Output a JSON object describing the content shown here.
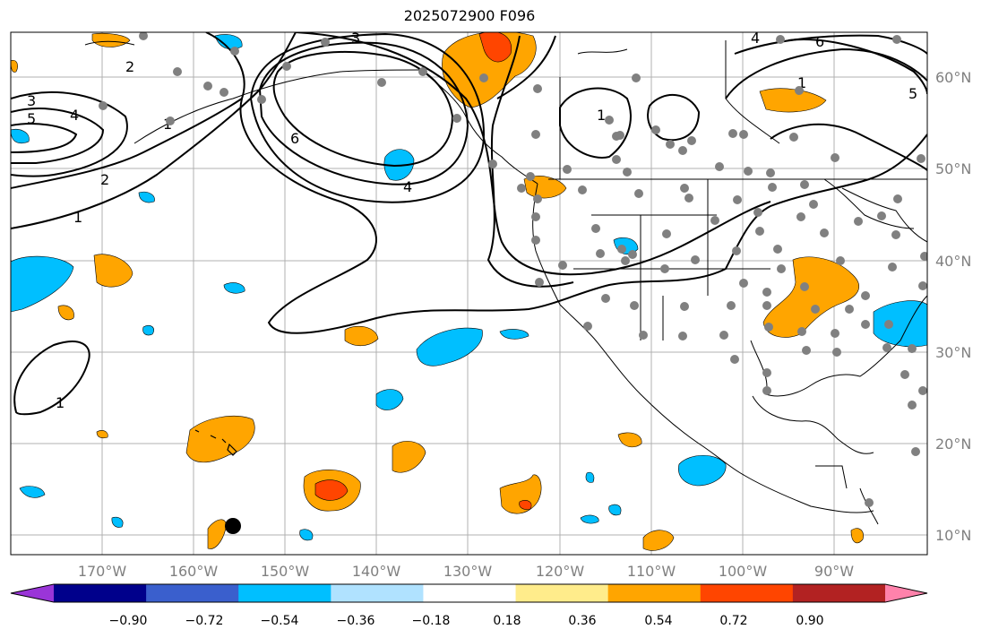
{
  "title": "2025072900 F096",
  "lon_labels": [
    "170°W",
    "160°W",
    "150°W",
    "140°W",
    "130°W",
    "120°W",
    "110°W",
    "100°W",
    "90°W"
  ],
  "lat_labels": [
    "60°N",
    "50°N",
    "40°N",
    "30°N",
    "20°N",
    "10°N"
  ],
  "contour_labels": [
    "3",
    "5",
    "4",
    "2",
    "1",
    "6",
    "4",
    "3",
    "1",
    "2",
    "1",
    "4",
    "6",
    "1",
    "5",
    "1"
  ],
  "colorbar": {
    "ticks": [
      "−0.90",
      "−0.72",
      "−0.54",
      "−0.36",
      "−0.18",
      "0.18",
      "0.36",
      "0.54",
      "0.72",
      "0.90"
    ],
    "colors": [
      "#9a35d8",
      "#00008b",
      "#3a5fcd",
      "#00bfff",
      "#b0e2ff",
      "#ffffff",
      "#ffec8b",
      "#ffa500",
      "#ff4500",
      "#b22222",
      "#ff82ab"
    ]
  },
  "colors": {
    "orange": "#ffa500",
    "red_orange": "#ff4500",
    "sky_blue": "#00bfff",
    "station_gray": "#808080"
  }
}
